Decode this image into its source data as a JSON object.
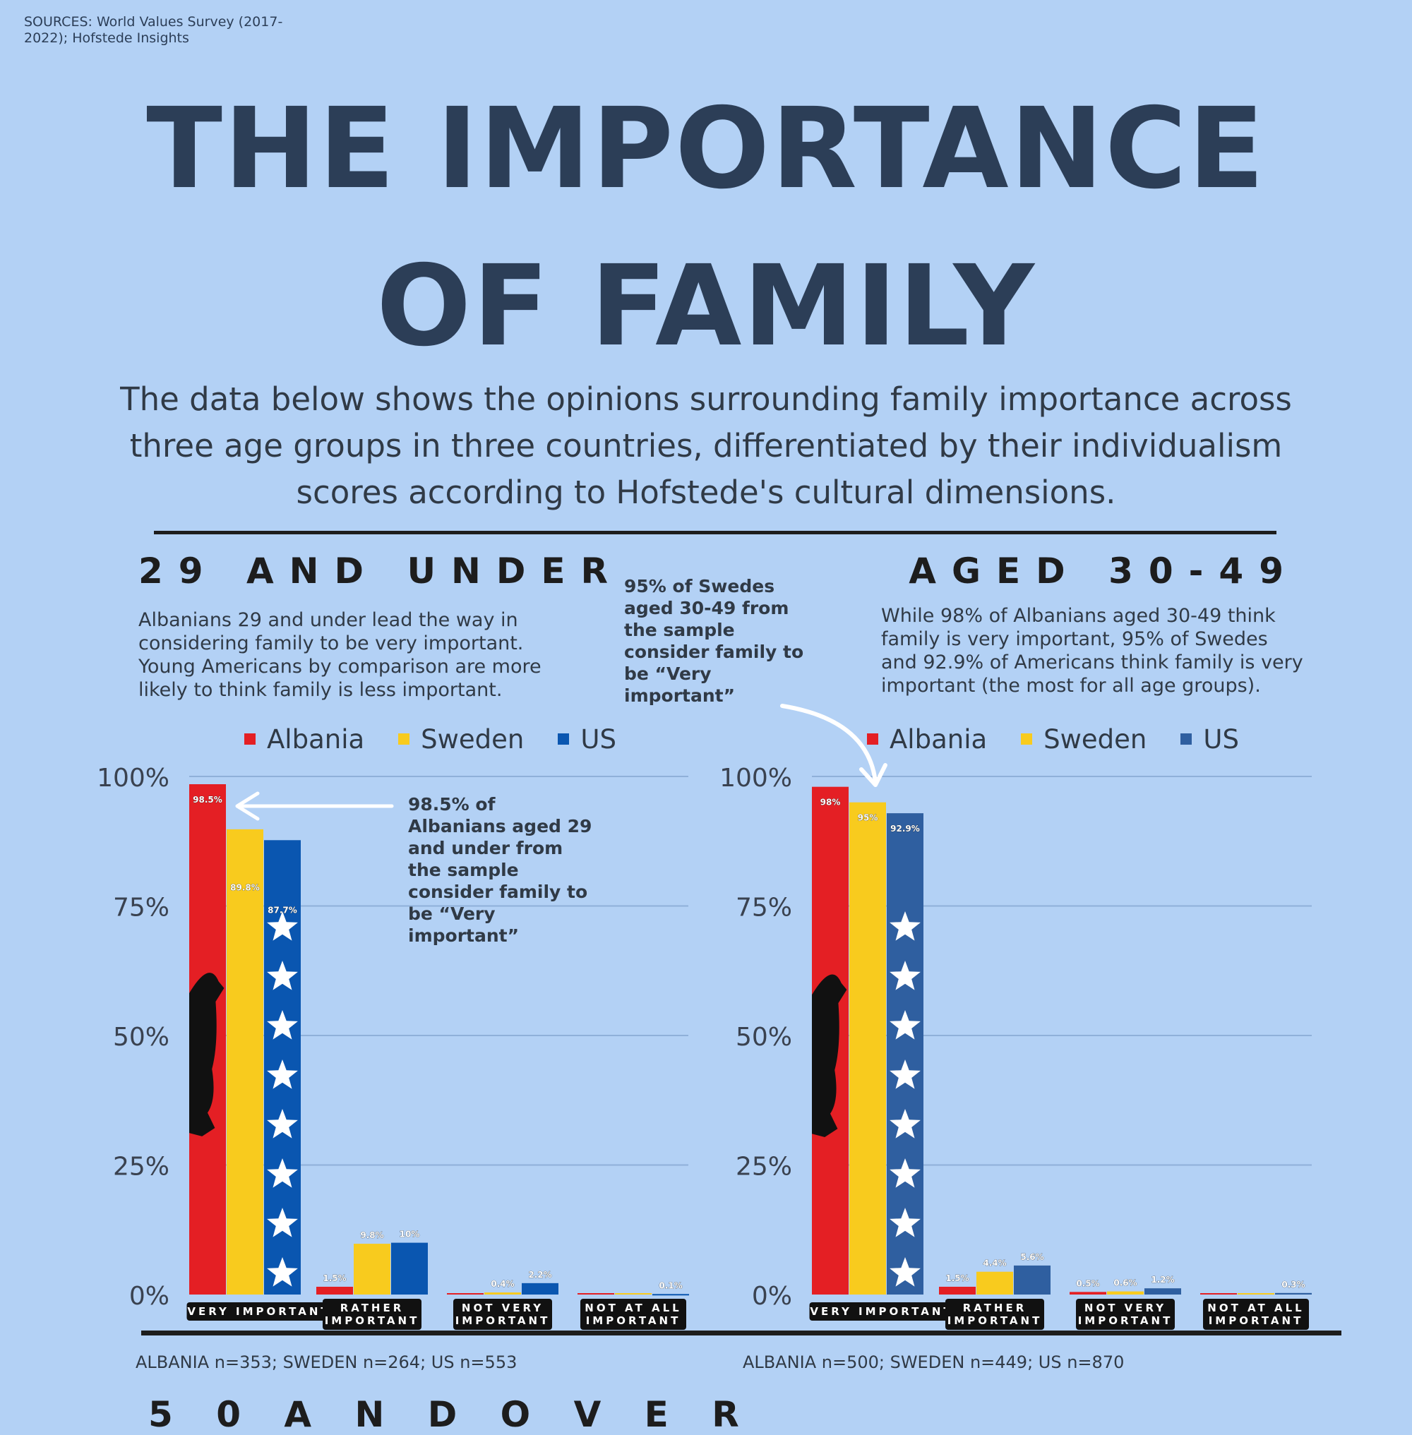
{
  "sources": "SOURCES:  World Values Survey (2017-2022); Hofstede Insights",
  "title": {
    "line1": "THE IMPORTANCE",
    "line2": "OF FAMILY"
  },
  "intro": "The data below shows the opinions surrounding family importance across three age groups in three countries, differentiated by their individualism scores according to Hofstede's cultural dimensions.",
  "next_heading": "5 0   A N D   O V E R",
  "colors": {
    "Albania": "#e41f24",
    "Sweden": "#f8cb1e",
    "US": "#0a56b0"
  },
  "legend": [
    "Albania",
    "Sweden",
    "US"
  ],
  "chart_data": [
    {
      "type": "bar",
      "heading": "29 AND UNDER",
      "description": "Albanians 29 and under lead the way in considering family to be very important. Young Americans by comparison are more likely to think family is less important.",
      "callout": "98.5% of Albanians aged 29 and under from the sample consider family to be “Very important”",
      "categories": [
        "VERY IMPORTANT",
        "RATHER IMPORTANT",
        "NOT VERY IMPORTANT",
        "NOT AT ALL IMPORTANT"
      ],
      "series": [
        {
          "name": "Albania",
          "values": [
            98.5,
            1.5,
            0,
            0
          ],
          "labels": [
            "98.5%",
            "1.5%",
            "",
            ""
          ]
        },
        {
          "name": "Sweden",
          "values": [
            89.8,
            9.8,
            0.4,
            0
          ],
          "labels": [
            "89.8%",
            "9.8%",
            "0.4%",
            ""
          ]
        },
        {
          "name": "US",
          "values": [
            87.7,
            10,
            2.2,
            0.1
          ],
          "labels": [
            "87.7%",
            "10%",
            "2.2%",
            "0.1%"
          ]
        }
      ],
      "yticks": [
        "0%",
        "25%",
        "50%",
        "75%",
        "100%"
      ],
      "ylim": [
        0,
        100
      ],
      "sample": "ALBANIA n=353; SWEDEN n=264; US n=553"
    },
    {
      "type": "bar",
      "heading": "AGED 30-49",
      "description": "While 98% of Albanians aged 30-49 think family is very important, 95% of Swedes and 92.9% of Americans think family is very important (the most for all age groups).",
      "callout": "95% of Swedes aged 30-49 from the sample consider family to be “Very important”",
      "categories": [
        "VERY IMPORTANT",
        "RATHER IMPORTANT",
        "NOT VERY IMPORTANT",
        "NOT AT ALL IMPORTANT"
      ],
      "series": [
        {
          "name": "Albania",
          "values": [
            98,
            1.5,
            0.5,
            0
          ],
          "labels": [
            "98%",
            "1.5%",
            "0.5%",
            ""
          ]
        },
        {
          "name": "Sweden",
          "values": [
            95,
            4.4,
            0.6,
            0
          ],
          "labels": [
            "95%",
            "4.4%",
            "0.6%",
            ""
          ]
        },
        {
          "name": "US",
          "values": [
            92.9,
            5.6,
            1.2,
            0.3
          ],
          "labels": [
            "92.9%",
            "5.6%",
            "1.2%",
            "0.3%"
          ]
        }
      ],
      "yticks": [
        "0%",
        "25%",
        "50%",
        "75%",
        "100%"
      ],
      "ylim": [
        0,
        100
      ],
      "sample": "ALBANIA n=500; SWEDEN n=449; US n=870"
    }
  ]
}
